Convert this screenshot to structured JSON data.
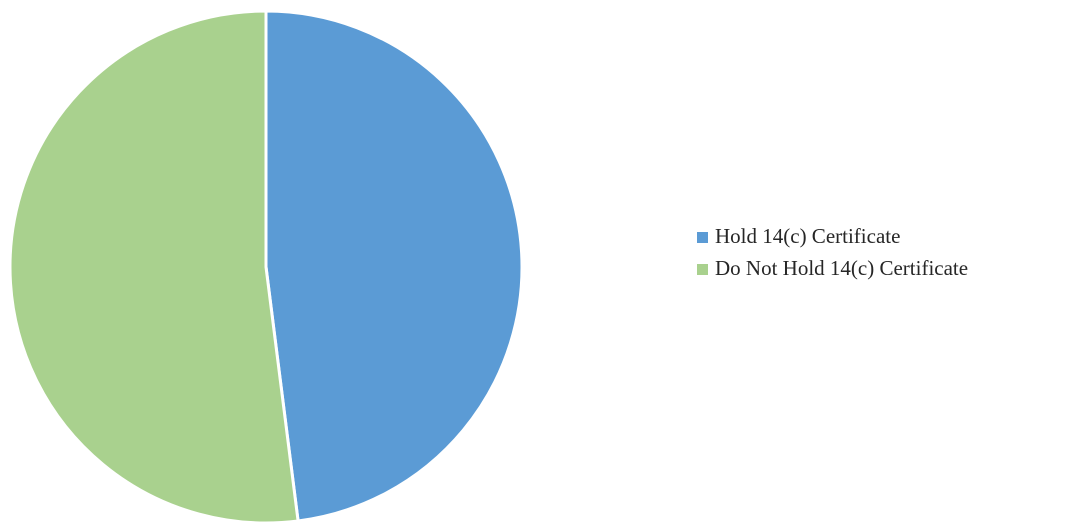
{
  "chart_data": {
    "type": "pie",
    "title": "",
    "categories": [
      "Hold 14(c) Certificate",
      "Do Not Hold 14(c) Certificate"
    ],
    "values": [
      48,
      52
    ],
    "colors": [
      "#5b9bd5",
      "#a9d18e"
    ],
    "legend": {
      "placement": "right",
      "entries": [
        "Hold 14(c) Certificate",
        "Do Not Hold 14(c) Certificate"
      ]
    },
    "start_angle": "12 o'clock",
    "direction": "clockwise"
  }
}
